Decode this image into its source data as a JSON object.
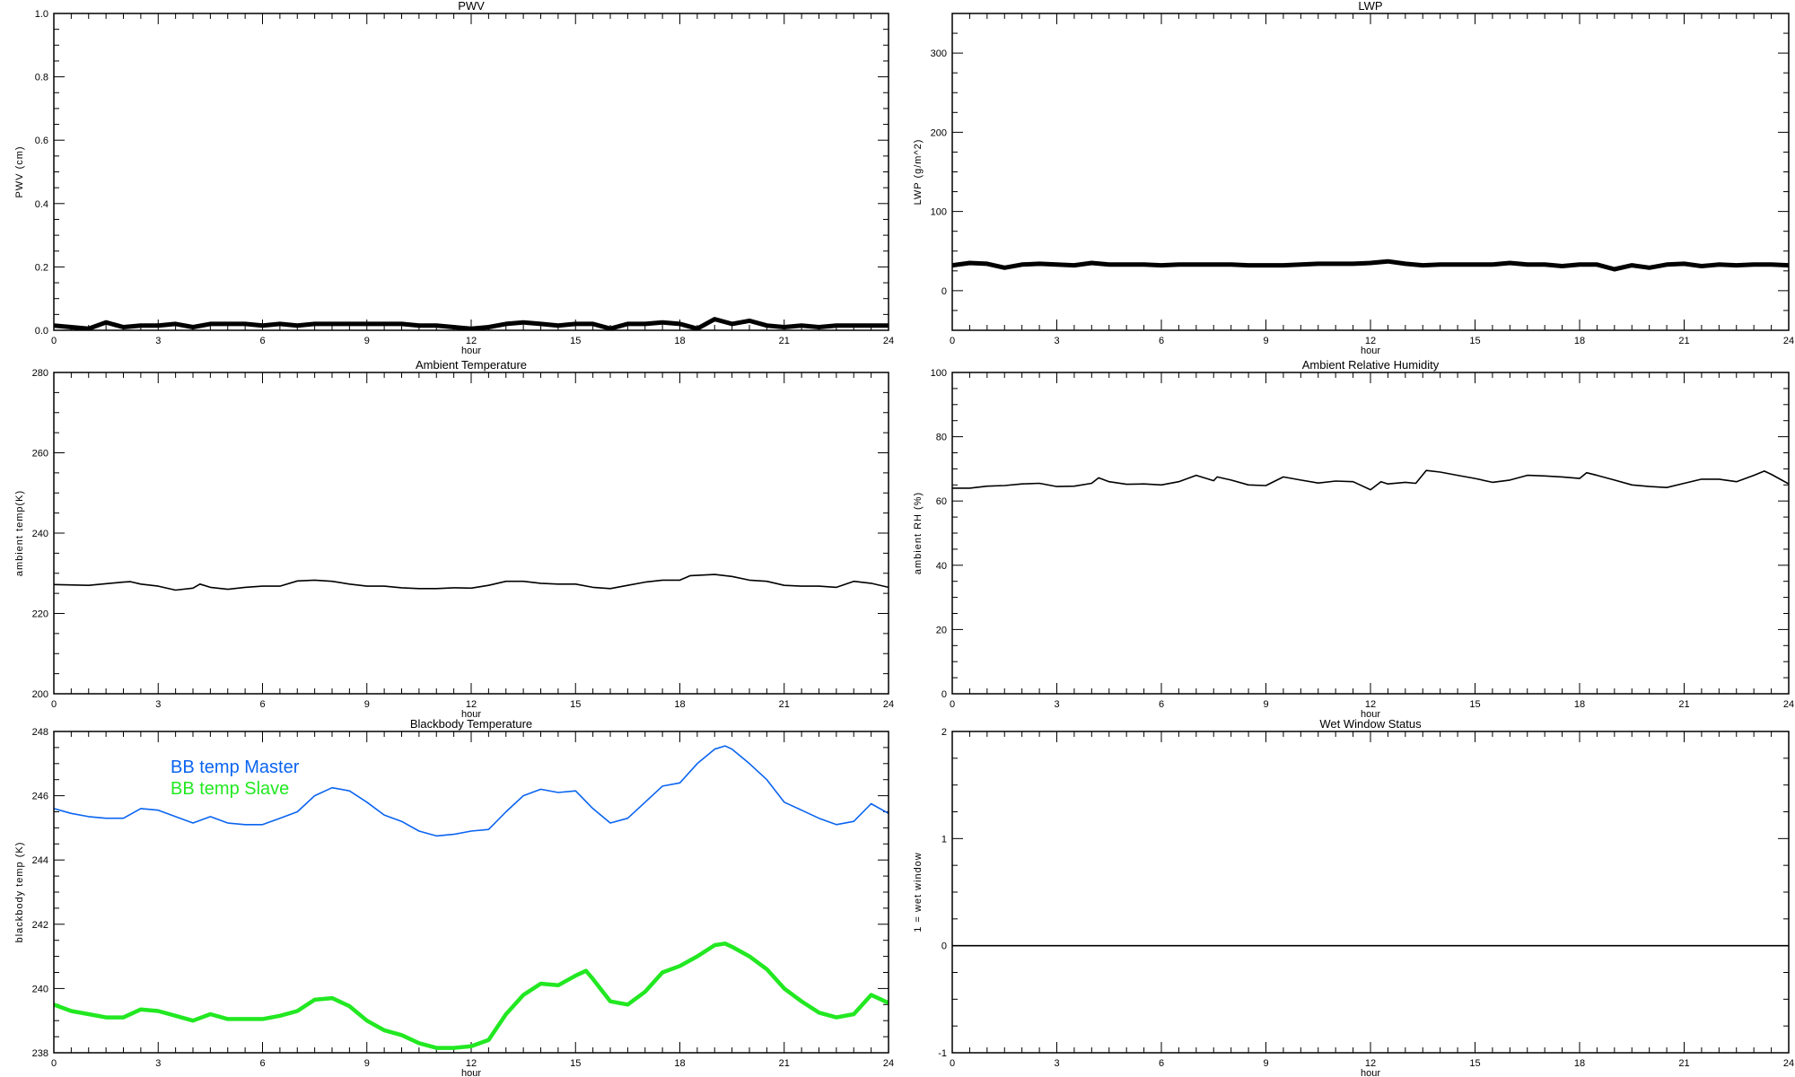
{
  "chart_data": [
    {
      "type": "line",
      "title": "PWV",
      "xlabel": "hour",
      "ylabel": "PWV (cm)",
      "xlim": [
        0,
        24
      ],
      "ylim": [
        0,
        1
      ],
      "xticks": [
        0,
        3,
        6,
        9,
        12,
        15,
        18,
        21,
        24
      ],
      "xtick_labels": [
        "0",
        "3",
        "6",
        "9",
        "12",
        "15",
        "18",
        "21",
        "24"
      ],
      "yticks": [
        0,
        0.2,
        0.4,
        0.6,
        0.8,
        1.0
      ],
      "ytick_labels": [
        "0.0",
        "0.2",
        "0.4",
        "0.6",
        "0.8",
        "1.0"
      ],
      "grid": false,
      "series": [
        {
          "color": "#000000",
          "style": "noisy",
          "x": [
            0,
            0.5,
            1,
            1.5,
            2,
            2.5,
            3,
            3.5,
            4,
            4.5,
            5,
            5.5,
            6,
            6.5,
            7,
            7.5,
            8,
            8.5,
            9,
            9.5,
            10,
            10.5,
            11,
            11.5,
            12,
            12.5,
            13,
            13.5,
            14,
            14.5,
            15,
            15.5,
            16,
            16.5,
            17,
            17.5,
            18,
            18.5,
            19,
            19.5,
            20,
            20.5,
            21,
            21.5,
            22,
            22.5,
            23,
            23.5,
            24
          ],
          "y": [
            0.015,
            0.01,
            0.005,
            0.025,
            0.01,
            0.015,
            0.015,
            0.02,
            0.01,
            0.02,
            0.02,
            0.02,
            0.015,
            0.02,
            0.015,
            0.02,
            0.02,
            0.02,
            0.02,
            0.02,
            0.02,
            0.015,
            0.015,
            0.01,
            0.005,
            0.01,
            0.02,
            0.025,
            0.02,
            0.015,
            0.02,
            0.02,
            0.005,
            0.02,
            0.02,
            0.025,
            0.02,
            0.005,
            0.035,
            0.02,
            0.03,
            0.015,
            0.01,
            0.015,
            0.01,
            0.015,
            0.015,
            0.015,
            0.015
          ]
        }
      ]
    },
    {
      "type": "line",
      "title": "LWP",
      "xlabel": "hour",
      "ylabel": "LWP (g/m^2)",
      "xlim": [
        0,
        24
      ],
      "ylim": [
        -50,
        350
      ],
      "xticks": [
        0,
        3,
        6,
        9,
        12,
        15,
        18,
        21,
        24
      ],
      "xtick_labels": [
        "0",
        "3",
        "6",
        "9",
        "12",
        "15",
        "18",
        "21",
        "24"
      ],
      "yticks": [
        0,
        100,
        200,
        300
      ],
      "ytick_labels": [
        "0",
        "100",
        "200",
        "300"
      ],
      "grid": false,
      "series": [
        {
          "color": "#000000",
          "style": "noisy",
          "x": [
            0,
            0.5,
            1,
            1.5,
            2,
            2.5,
            3,
            3.5,
            4,
            4.5,
            5,
            5.5,
            6,
            6.5,
            7,
            7.5,
            8,
            8.5,
            9,
            9.5,
            10,
            10.5,
            11,
            11.5,
            12,
            12.5,
            13,
            13.5,
            14,
            14.5,
            15,
            15.5,
            16,
            16.5,
            17,
            17.5,
            18,
            18.5,
            19,
            19.5,
            20,
            20.5,
            21,
            21.5,
            22,
            22.5,
            23,
            23.5,
            24
          ],
          "y": [
            32,
            35,
            34,
            29,
            33,
            34,
            33,
            32,
            35,
            33,
            33,
            33,
            32,
            33,
            33,
            33,
            33,
            32,
            32,
            32,
            33,
            34,
            34,
            34,
            35,
            37,
            34,
            32,
            33,
            33,
            33,
            33,
            35,
            33,
            33,
            31,
            33,
            33,
            27,
            32,
            29,
            33,
            34,
            31,
            33,
            32,
            33,
            33,
            32
          ]
        }
      ]
    },
    {
      "type": "line",
      "title": "Ambient Temperature",
      "xlabel": "hour",
      "ylabel": "ambient temp(K)",
      "xlim": [
        0,
        24
      ],
      "ylim": [
        200,
        280
      ],
      "xticks": [
        0,
        3,
        6,
        9,
        12,
        15,
        18,
        21,
        24
      ],
      "xtick_labels": [
        "0",
        "3",
        "6",
        "9",
        "12",
        "15",
        "18",
        "21",
        "24"
      ],
      "yticks": [
        200,
        220,
        240,
        260,
        280
      ],
      "ytick_labels": [
        "200",
        "220",
        "240",
        "260",
        "280"
      ],
      "grid": false,
      "series": [
        {
          "color": "#000000",
          "style": "thin",
          "x": [
            0,
            1,
            2,
            2.2,
            2.5,
            3,
            3.5,
            4,
            4.2,
            4.5,
            5,
            5.5,
            6,
            6.5,
            7,
            7.5,
            8,
            8.5,
            9,
            9.5,
            10,
            10.5,
            11,
            11.5,
            12,
            12.5,
            13,
            13.5,
            14,
            14.5,
            15,
            15.5,
            16,
            16.5,
            17,
            17.5,
            18,
            18.3,
            19,
            19.5,
            20,
            20.5,
            21,
            21.5,
            22,
            22.5,
            23,
            23.5,
            24
          ],
          "y": [
            227.2,
            227.0,
            227.8,
            227.9,
            227.3,
            226.8,
            225.8,
            226.3,
            227.3,
            226.5,
            226.0,
            226.5,
            226.8,
            226.8,
            228.1,
            228.3,
            228.0,
            227.3,
            226.8,
            226.8,
            226.4,
            226.2,
            226.2,
            226.4,
            226.3,
            227.0,
            228.0,
            228.0,
            227.5,
            227.3,
            227.3,
            226.5,
            226.2,
            227.0,
            227.8,
            228.3,
            228.3,
            229.4,
            229.7,
            229.2,
            228.3,
            228.0,
            227.0,
            226.8,
            226.8,
            226.5,
            228.0,
            227.5,
            226.5
          ]
        }
      ]
    },
    {
      "type": "line",
      "title": "Ambient Relative Humidity",
      "xlabel": "hour",
      "ylabel": "ambient RH (%)",
      "xlim": [
        0,
        24
      ],
      "ylim": [
        0,
        100
      ],
      "xticks": [
        0,
        3,
        6,
        9,
        12,
        15,
        18,
        21,
        24
      ],
      "xtick_labels": [
        "0",
        "3",
        "6",
        "9",
        "12",
        "15",
        "18",
        "21",
        "24"
      ],
      "yticks": [
        0,
        20,
        40,
        60,
        80,
        100
      ],
      "ytick_labels": [
        "0",
        "20",
        "40",
        "60",
        "80",
        "100"
      ],
      "grid": false,
      "series": [
        {
          "color": "#000000",
          "style": "thin",
          "x": [
            0,
            0.5,
            1,
            1.5,
            2,
            2.5,
            3,
            3.5,
            4,
            4.2,
            4.5,
            5,
            5.5,
            6,
            6.5,
            7,
            7.5,
            7.6,
            8,
            8.5,
            9,
            9.5,
            10,
            10.5,
            11,
            11.5,
            12,
            12.3,
            12.5,
            13,
            13.3,
            13.6,
            14,
            14.5,
            15,
            15.5,
            16,
            16.5,
            17,
            17.5,
            18,
            18.2,
            18.5,
            19,
            19.5,
            20,
            20.5,
            21,
            21.5,
            22,
            22.5,
            23,
            23.3,
            23.5,
            24
          ],
          "y": [
            64.0,
            64.0,
            64.6,
            64.8,
            65.3,
            65.5,
            64.5,
            64.6,
            65.5,
            67.2,
            66.0,
            65.2,
            65.3,
            65.0,
            66.0,
            68.0,
            66.3,
            67.5,
            66.5,
            65.0,
            64.8,
            67.5,
            66.5,
            65.6,
            66.2,
            66.0,
            63.5,
            66.0,
            65.3,
            65.8,
            65.5,
            69.5,
            69.0,
            68.0,
            67.0,
            65.8,
            66.5,
            68.0,
            67.8,
            67.5,
            67.0,
            68.8,
            68.0,
            66.5,
            65.0,
            64.5,
            64.2,
            65.5,
            66.8,
            66.8,
            66.0,
            68.0,
            69.3,
            68.3,
            65.3
          ]
        }
      ]
    },
    {
      "type": "line",
      "title": "Blackbody Temperature",
      "xlabel": "hour",
      "ylabel": "blackbody temp (K)",
      "xlim": [
        0,
        24
      ],
      "ylim": [
        238,
        248
      ],
      "xticks": [
        0,
        3,
        6,
        9,
        12,
        15,
        18,
        21,
        24
      ],
      "xtick_labels": [
        "0",
        "3",
        "6",
        "9",
        "12",
        "15",
        "18",
        "21",
        "24"
      ],
      "yticks": [
        238,
        240,
        242,
        244,
        246,
        248
      ],
      "ytick_labels": [
        "238",
        "240",
        "242",
        "244",
        "246",
        "248"
      ],
      "grid": false,
      "legend": "top-left",
      "series": [
        {
          "name": "BB temp Master",
          "color": "#0a64f0",
          "style": "thin",
          "x": [
            0,
            0.5,
            1,
            1.5,
            2,
            2.5,
            3,
            3.5,
            4,
            4.5,
            5,
            5.5,
            6,
            6.5,
            7,
            7.5,
            8,
            8.5,
            9,
            9.5,
            10,
            10.5,
            11,
            11.5,
            12,
            12.5,
            13,
            13.5,
            14,
            14.5,
            15,
            15.5,
            16,
            16.5,
            17,
            17.5,
            18,
            18.5,
            19,
            19.3,
            19.5,
            20,
            20.5,
            21,
            21.5,
            22,
            22.5,
            23,
            23.5,
            24
          ],
          "y": [
            245.6,
            245.45,
            245.35,
            245.3,
            245.3,
            245.6,
            245.55,
            245.35,
            245.15,
            245.35,
            245.15,
            245.1,
            245.1,
            245.3,
            245.5,
            246.0,
            246.25,
            246.15,
            245.8,
            245.4,
            245.2,
            244.9,
            244.75,
            244.8,
            244.9,
            244.95,
            245.5,
            246.0,
            246.2,
            246.1,
            246.15,
            245.6,
            245.15,
            245.3,
            245.8,
            246.3,
            246.4,
            247.0,
            247.45,
            247.55,
            247.45,
            247.0,
            246.5,
            245.8,
            245.55,
            245.3,
            245.1,
            245.2,
            245.75,
            245.45
          ]
        },
        {
          "name": "BB temp Slave",
          "color": "#22e822",
          "style": "thick",
          "x": [
            0,
            0.5,
            1,
            1.5,
            2,
            2.5,
            3,
            3.5,
            4,
            4.5,
            5,
            5.5,
            6,
            6.5,
            7,
            7.5,
            8,
            8.5,
            9,
            9.5,
            10,
            10.5,
            11,
            11.5,
            12,
            12.5,
            13,
            13.5,
            14,
            14.5,
            15,
            15.3,
            15.5,
            16,
            16.5,
            17,
            17.5,
            18,
            18.5,
            19,
            19.3,
            19.5,
            20,
            20.5,
            21,
            21.5,
            22,
            22.5,
            23,
            23.5,
            24
          ],
          "y": [
            239.5,
            239.3,
            239.2,
            239.1,
            239.1,
            239.35,
            239.3,
            239.15,
            239.0,
            239.2,
            239.05,
            239.05,
            239.05,
            239.15,
            239.3,
            239.65,
            239.7,
            239.45,
            239.0,
            238.7,
            238.55,
            238.3,
            238.15,
            238.15,
            238.2,
            238.4,
            239.2,
            239.8,
            240.15,
            240.1,
            240.4,
            240.55,
            240.3,
            239.6,
            239.5,
            239.9,
            240.5,
            240.7,
            241.0,
            241.35,
            241.4,
            241.3,
            241.0,
            240.6,
            240.0,
            239.6,
            239.25,
            239.1,
            239.2,
            239.8,
            239.55
          ]
        }
      ]
    },
    {
      "type": "line",
      "title": "Wet Window Status",
      "xlabel": "hour",
      "ylabel": "1 = wet window",
      "xlim": [
        0,
        24
      ],
      "ylim": [
        -1,
        2
      ],
      "xticks": [
        0,
        3,
        6,
        9,
        12,
        15,
        18,
        21,
        24
      ],
      "xtick_labels": [
        "0",
        "3",
        "6",
        "9",
        "12",
        "15",
        "18",
        "21",
        "24"
      ],
      "yticks": [
        -1,
        0,
        1,
        2
      ],
      "ytick_labels": [
        "-1",
        "0",
        "1",
        "2"
      ],
      "grid": false,
      "series": [
        {
          "color": "#000000",
          "style": "thin",
          "x": [
            0,
            24
          ],
          "y": [
            0,
            0
          ]
        }
      ]
    }
  ]
}
